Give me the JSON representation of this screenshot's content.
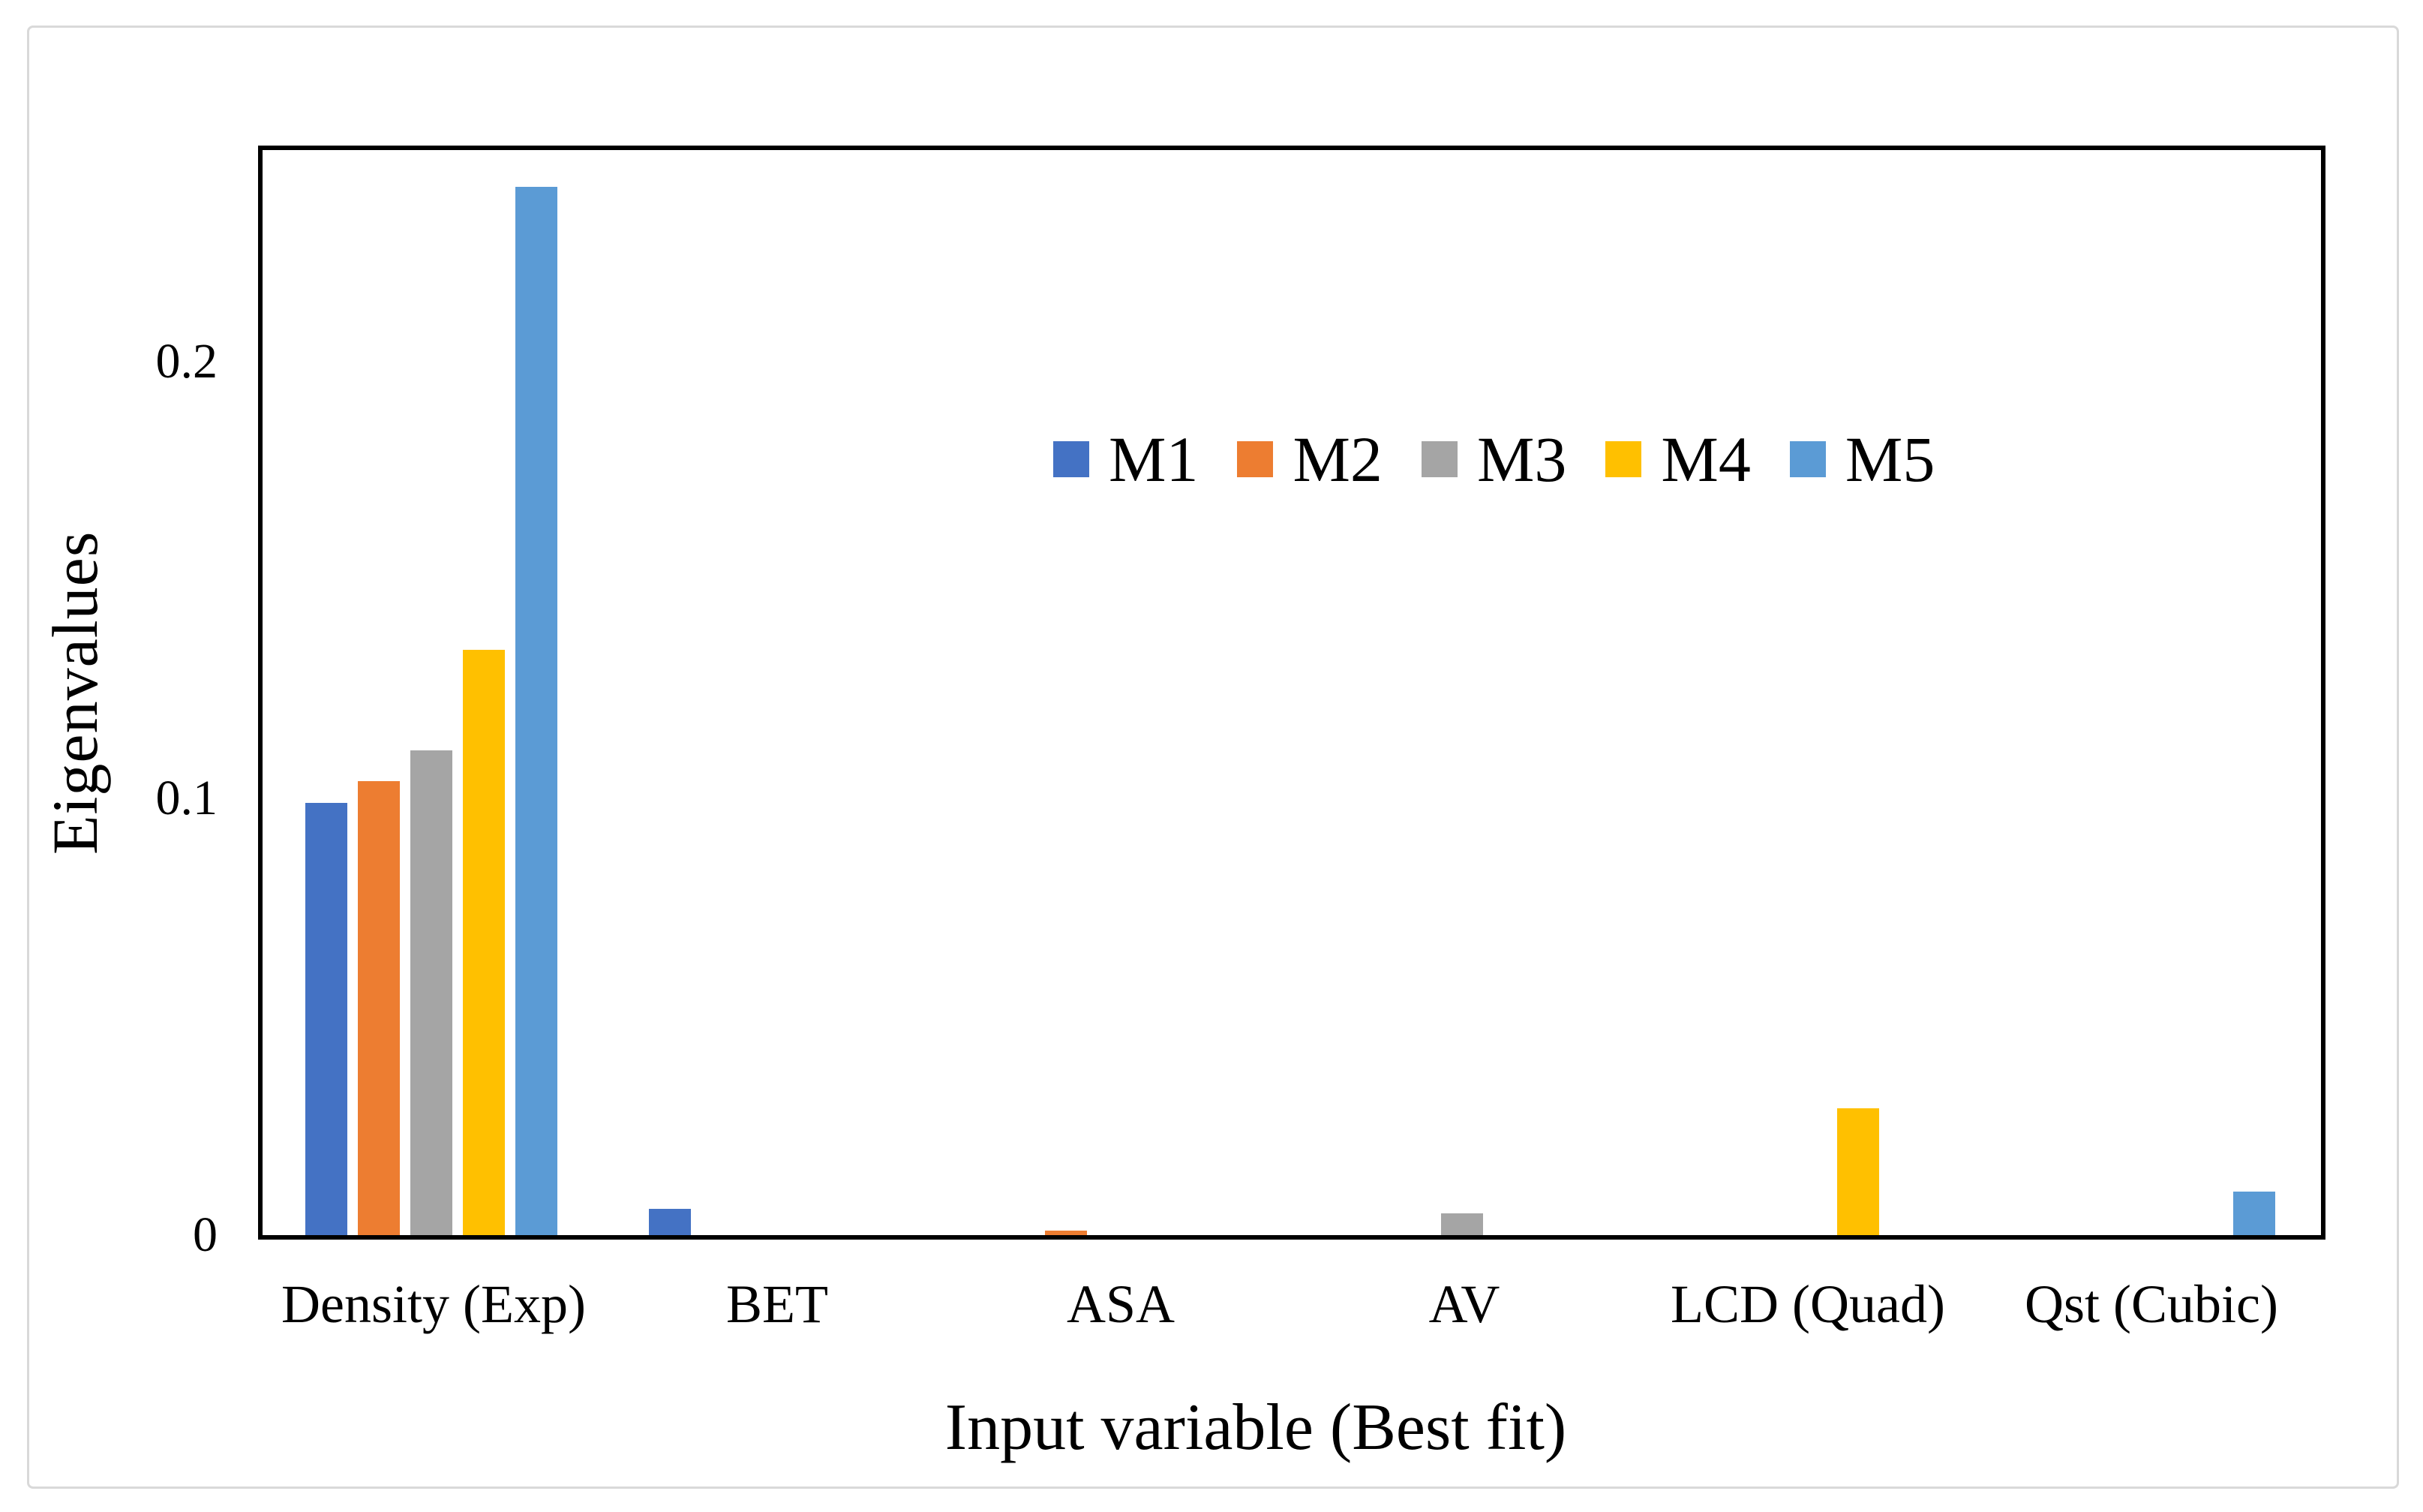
{
  "chart_data": {
    "type": "bar",
    "title": "",
    "xlabel": "Input variable (Best fit)",
    "ylabel": "Eigenvalues",
    "categories": [
      "Density (Exp)",
      "BET",
      "ASA",
      "AV",
      "LCD (Quad)",
      "Qst (Cubic)"
    ],
    "series": [
      {
        "name": "M1",
        "color": "#4472C4",
        "values": [
          0.099,
          0.006,
          0,
          0,
          0,
          0
        ]
      },
      {
        "name": "M2",
        "color": "#ED7D31",
        "values": [
          0.104,
          0,
          0.001,
          0,
          0,
          0
        ]
      },
      {
        "name": "M3",
        "color": "#A5A5A5",
        "values": [
          0.111,
          0,
          0,
          0.005,
          0,
          0
        ]
      },
      {
        "name": "M4",
        "color": "#FFC000",
        "values": [
          0.134,
          0,
          0,
          0,
          0.029,
          0
        ]
      },
      {
        "name": "M5",
        "color": "#5B9BD5",
        "values": [
          0.24,
          0,
          0,
          0,
          0,
          0.01
        ]
      }
    ],
    "yticks": [
      {
        "label": "0",
        "value": 0
      },
      {
        "label": "0.1",
        "value": 0.1
      },
      {
        "label": "0.2",
        "value": 0.2
      }
    ],
    "ylim": [
      0,
      0.249
    ],
    "grid": false,
    "legend_position": "inside-upper-right",
    "frame_color": "#d9d9d9",
    "axis_color": "#000000"
  }
}
